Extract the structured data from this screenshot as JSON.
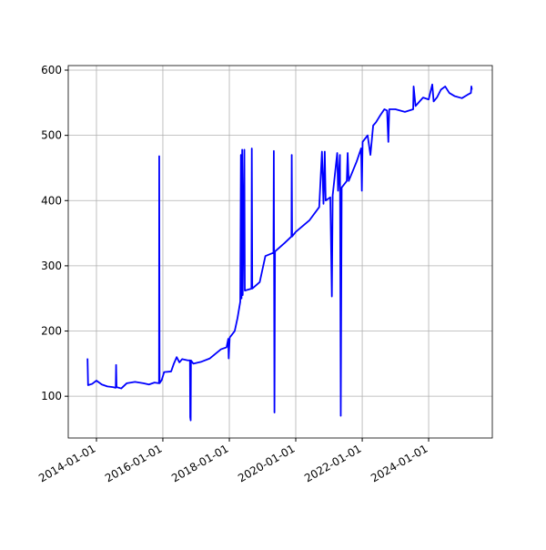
{
  "chart_data": {
    "type": "line",
    "color": "#0000ff",
    "grid": true,
    "x": [
      "2013-09-25",
      "2013-10-01",
      "2013-11-15",
      "2014-01-01",
      "2014-03-01",
      "2014-05-01",
      "2014-07-01",
      "2014-08-01",
      "2014-08-05",
      "2014-08-10",
      "2014-10-01",
      "2014-12-01",
      "2015-03-01",
      "2015-06-01",
      "2015-08-01",
      "2015-10-01",
      "2015-11-20",
      "2015-11-22",
      "2015-11-26",
      "2015-12-20",
      "2016-01-15",
      "2016-04-01",
      "2016-05-01",
      "2016-06-01",
      "2016-07-01",
      "2016-08-01",
      "2016-10-01",
      "2016-10-25",
      "2016-10-28",
      "2016-11-02",
      "2016-11-05",
      "2016-12-01",
      "2017-03-01",
      "2017-06-01",
      "2017-08-01",
      "2017-10-01",
      "2017-12-01",
      "2017-12-20",
      "2017-12-25",
      "2018-01-05",
      "2018-03-01",
      "2018-04-01",
      "2018-05-01",
      "2018-05-08",
      "2018-05-15",
      "2018-05-22",
      "2018-05-28",
      "2018-06-15",
      "2018-06-20",
      "2018-09-01",
      "2018-09-05",
      "2018-09-10",
      "2018-12-01",
      "2019-02-01",
      "2019-05-01",
      "2019-05-05",
      "2019-05-12",
      "2019-05-18",
      "2019-09-01",
      "2019-11-15",
      "2019-11-18",
      "2019-11-22",
      "2020-01-01",
      "2020-06-01",
      "2020-09-15",
      "2020-10-15",
      "2020-11-01",
      "2020-11-15",
      "2020-11-25",
      "2021-01-15",
      "2021-02-01",
      "2021-02-10",
      "2021-04-01",
      "2021-04-10",
      "2021-05-01",
      "2021-05-10",
      "2021-05-20",
      "2021-07-15",
      "2021-07-25",
      "2021-08-05",
      "2021-11-01",
      "2021-12-20",
      "2021-12-28",
      "2022-01-05",
      "2022-03-01",
      "2022-04-01",
      "2022-05-01",
      "2022-06-01",
      "2022-07-15",
      "2022-09-01",
      "2022-10-01",
      "2022-10-15",
      "2022-10-25",
      "2023-01-01",
      "2023-04-15",
      "2023-07-15",
      "2023-07-20",
      "2023-08-10",
      "2023-11-01",
      "2024-01-01",
      "2024-02-10",
      "2024-02-25",
      "2024-04-01",
      "2024-05-15",
      "2024-07-01",
      "2024-08-15",
      "2024-10-15",
      "2025-01-01",
      "2025-03-01",
      "2025-04-10",
      "2025-04-15",
      "2025-04-20"
    ],
    "values": [
      158,
      117,
      119,
      124,
      118,
      115,
      114,
      113,
      148,
      114,
      112,
      120,
      122,
      120,
      118,
      121,
      120,
      468,
      120,
      125,
      137,
      138,
      150,
      160,
      152,
      157,
      155,
      155,
      68,
      63,
      155,
      150,
      153,
      158,
      165,
      172,
      175,
      188,
      158,
      190,
      200,
      220,
      245,
      470,
      250,
      478,
      255,
      478,
      262,
      265,
      480,
      265,
      275,
      315,
      320,
      476,
      75,
      322,
      335,
      345,
      470,
      345,
      352,
      370,
      390,
      475,
      395,
      475,
      400,
      405,
      253,
      408,
      473,
      415,
      470,
      70,
      420,
      430,
      473,
      430,
      460,
      480,
      415,
      490,
      500,
      470,
      515,
      520,
      530,
      540,
      538,
      490,
      540,
      540,
      536,
      540,
      575,
      545,
      558,
      555,
      578,
      552,
      558,
      570,
      575,
      565,
      560,
      557,
      562,
      565,
      575,
      570
    ],
    "xlim": [
      "2013-02-25",
      "2025-12-01"
    ],
    "xticks": [
      "2014-01-01",
      "2016-01-01",
      "2018-01-01",
      "2020-01-01",
      "2022-01-01",
      "2024-01-01"
    ],
    "ylim": [
      36,
      607
    ],
    "yticks": [
      100,
      200,
      300,
      400,
      500,
      600
    ]
  }
}
